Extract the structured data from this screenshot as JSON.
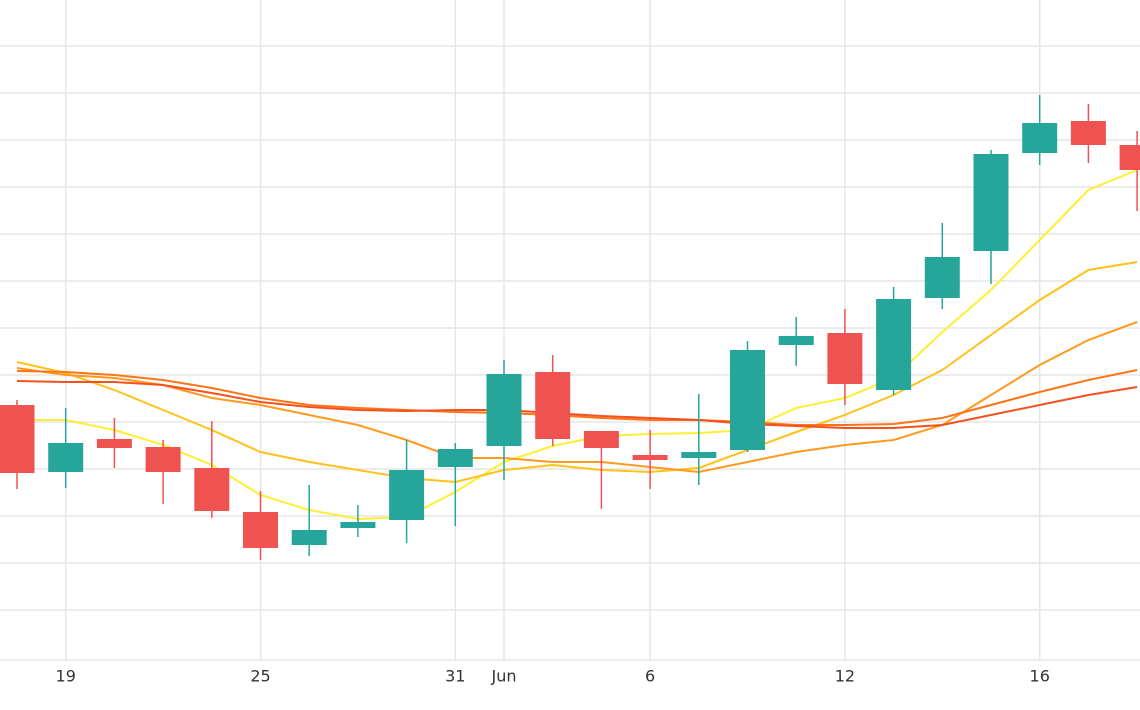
{
  "chart_data": {
    "type": "candlestick",
    "categories": [
      null,
      "19",
      null,
      null,
      null,
      "25",
      null,
      null,
      null,
      "31",
      "Jun",
      null,
      null,
      "6",
      null,
      null,
      null,
      "12",
      null,
      null,
      null,
      "16",
      null,
      null
    ],
    "open": [
      255,
      188,
      221,
      213,
      192,
      148,
      115,
      132,
      140,
      193,
      214,
      288,
      229,
      205,
      202,
      210,
      315,
      327,
      270,
      362,
      409,
      507,
      539,
      515
    ],
    "high": [
      260,
      252,
      242,
      220,
      239,
      169,
      175,
      155,
      220,
      217,
      300,
      305,
      229,
      230,
      266,
      319,
      343,
      351,
      373,
      437,
      510,
      565,
      556,
      529
    ],
    "low": [
      171,
      172,
      192,
      156,
      142,
      100,
      104,
      123,
      117,
      134,
      180,
      214,
      151,
      171,
      175,
      208,
      294,
      255,
      265,
      351,
      376,
      495,
      497,
      449
    ],
    "close": [
      187,
      217,
      212,
      188,
      149,
      112,
      130,
      138,
      190,
      211,
      286,
      221,
      212,
      200,
      208,
      310,
      324,
      276,
      361,
      403,
      506,
      537,
      515,
      490
    ],
    "up_color": "#26a69a",
    "down_color": "#ef5350",
    "series": [
      {
        "color": "#ffee33",
        "values": [
          240,
          240,
          230,
          215,
          195,
          165,
          150,
          141,
          143,
          168,
          198,
          214,
          224,
          226,
          227,
          230,
          252,
          262,
          282,
          328,
          370,
          420,
          470,
          490
        ]
      },
      {
        "color": "#ffc21a",
        "values": [
          298,
          287,
          270,
          250,
          230,
          208,
          198,
          190,
          182,
          178,
          190,
          195,
          190,
          188,
          192,
          210,
          228,
          245,
          265,
          290,
          325,
          360,
          390,
          398
        ]
      },
      {
        "color": "#ff9a1f",
        "values": [
          292,
          285,
          282,
          275,
          262,
          255,
          245,
          235,
          220,
          202,
          202,
          198,
          198,
          193,
          188,
          198,
          208,
          215,
          220,
          235,
          265,
          295,
          320,
          338
        ]
      },
      {
        "color": "#ff7418",
        "values": [
          289,
          288,
          285,
          280,
          272,
          262,
          255,
          252,
          250,
          248,
          247,
          245,
          242,
          240,
          240,
          238,
          235,
          235,
          236,
          242,
          255,
          268,
          280,
          290
        ]
      },
      {
        "color": "#f4511e",
        "values": [
          279,
          278,
          278,
          275,
          267,
          258,
          253,
          250,
          249,
          250,
          250,
          247,
          244,
          242,
          240,
          236,
          234,
          232,
          232,
          235,
          245,
          255,
          265,
          273
        ]
      }
    ],
    "ylim": [
      0,
      660
    ],
    "yticks": [
      50,
      97,
      144,
      191,
      238,
      285,
      332,
      379,
      426,
      473,
      520,
      567,
      614
    ],
    "grid": true
  }
}
